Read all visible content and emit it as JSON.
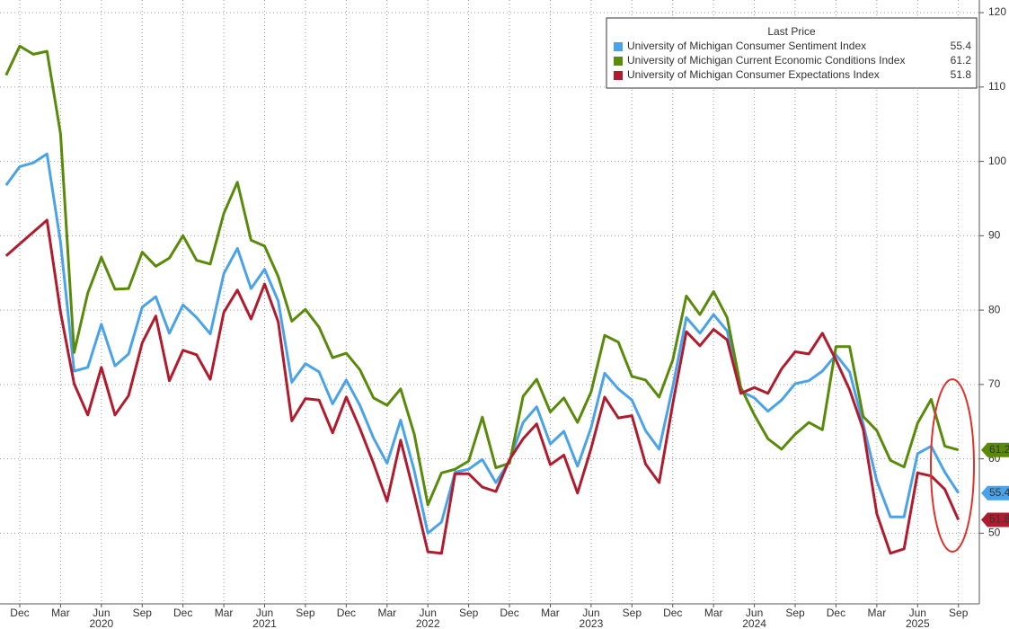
{
  "chart_data": {
    "type": "line",
    "legend_title": "Last Price",
    "x": [
      "2019-11",
      "2019-12",
      "2020-01",
      "2020-02",
      "2020-03",
      "2020-04",
      "2020-05",
      "2020-06",
      "2020-07",
      "2020-08",
      "2020-09",
      "2020-10",
      "2020-11",
      "2020-12",
      "2021-01",
      "2021-02",
      "2021-03",
      "2021-04",
      "2021-05",
      "2021-06",
      "2021-07",
      "2021-08",
      "2021-09",
      "2021-10",
      "2021-11",
      "2021-12",
      "2022-01",
      "2022-02",
      "2022-03",
      "2022-04",
      "2022-05",
      "2022-06",
      "2022-07",
      "2022-08",
      "2022-09",
      "2022-10",
      "2022-11",
      "2022-12",
      "2023-01",
      "2023-02",
      "2023-03",
      "2023-04",
      "2023-05",
      "2023-06",
      "2023-07",
      "2023-08",
      "2023-09",
      "2023-10",
      "2023-11",
      "2023-12",
      "2024-01",
      "2024-02",
      "2024-03",
      "2024-04",
      "2024-05",
      "2024-06",
      "2024-07",
      "2024-08",
      "2024-09",
      "2024-10",
      "2024-11",
      "2024-12",
      "2025-01",
      "2025-02",
      "2025-03",
      "2025-04",
      "2025-05",
      "2025-06",
      "2025-07",
      "2025-08",
      "2025-09"
    ],
    "series": [
      {
        "name": "University of Michigan Consumer Sentiment Index",
        "color": "#4aa3e8",
        "values": [
          96.8,
          99.3,
          99.8,
          101.0,
          89.1,
          71.8,
          72.3,
          78.1,
          72.5,
          74.1,
          80.4,
          81.8,
          76.9,
          80.7,
          79.0,
          76.8,
          84.9,
          88.3,
          82.9,
          85.5,
          81.2,
          70.3,
          72.8,
          71.7,
          67.4,
          70.6,
          67.2,
          62.8,
          59.4,
          65.2,
          58.4,
          50.0,
          51.5,
          58.2,
          58.6,
          59.9,
          56.8,
          59.7,
          64.9,
          67.0,
          62.0,
          63.7,
          59.0,
          64.2,
          71.5,
          69.4,
          67.9,
          63.8,
          61.3,
          69.7,
          79.0,
          76.9,
          79.4,
          77.2,
          69.1,
          68.2,
          66.4,
          67.9,
          70.1,
          70.5,
          71.8,
          74.0,
          71.7,
          64.7,
          57.0,
          52.2,
          52.2,
          60.7,
          61.7,
          58.2,
          55.4
        ]
      },
      {
        "name": "University of Michigan Current Economic Conditions Index",
        "color": "#5a8a0a",
        "values": [
          111.6,
          115.5,
          114.4,
          114.8,
          103.7,
          74.3,
          82.3,
          87.1,
          82.8,
          82.9,
          87.8,
          85.9,
          87.0,
          90.0,
          86.7,
          86.2,
          93.0,
          97.2,
          89.4,
          88.6,
          84.5,
          78.5,
          80.1,
          77.7,
          73.6,
          74.2,
          72.0,
          68.2,
          67.2,
          69.4,
          63.3,
          53.8,
          58.1,
          58.6,
          59.7,
          65.6,
          58.8,
          59.4,
          68.4,
          70.7,
          66.3,
          68.2,
          64.9,
          69.0,
          76.6,
          75.7,
          71.1,
          70.6,
          68.3,
          73.3,
          81.9,
          79.4,
          82.5,
          79.0,
          69.6,
          65.9,
          62.7,
          61.3,
          63.3,
          64.9,
          63.9,
          75.1,
          75.1,
          65.7,
          63.8,
          59.8,
          58.9,
          64.8,
          68.0,
          61.7,
          61.2
        ]
      },
      {
        "name": "University of Michigan Consumer Expectations Index",
        "color": "#b01c2e",
        "values": [
          87.3,
          88.9,
          90.5,
          92.1,
          79.7,
          70.1,
          65.9,
          72.3,
          65.9,
          68.5,
          75.6,
          79.2,
          70.5,
          74.6,
          74.0,
          70.7,
          79.7,
          82.7,
          78.8,
          83.5,
          78.4,
          65.1,
          68.1,
          67.9,
          63.5,
          68.3,
          64.1,
          59.4,
          54.3,
          62.5,
          55.2,
          47.5,
          47.3,
          58.0,
          58.0,
          56.2,
          55.6,
          59.9,
          62.7,
          64.7,
          59.2,
          60.5,
          55.4,
          61.4,
          68.3,
          65.5,
          65.8,
          59.3,
          56.8,
          67.4,
          77.1,
          75.2,
          77.4,
          76.0,
          68.8,
          69.6,
          68.8,
          72.1,
          74.4,
          74.1,
          76.9,
          73.3,
          69.3,
          64.0,
          52.6,
          47.3,
          47.9,
          58.1,
          57.7,
          55.9,
          51.8
        ]
      }
    ],
    "xlim": [
      "2019-10",
      "2025-11"
    ],
    "xticks": [
      {
        "value": "2019-12",
        "label": "Dec"
      },
      {
        "value": "2020-03",
        "label": "Mar"
      },
      {
        "value": "2020-06",
        "label": "Jun"
      },
      {
        "value": "2020-09",
        "label": "Sep"
      },
      {
        "value": "2020-12",
        "label": "Dec"
      },
      {
        "value": "2021-03",
        "label": "Mar"
      },
      {
        "value": "2021-06",
        "label": "Jun"
      },
      {
        "value": "2021-09",
        "label": "Sep"
      },
      {
        "value": "2021-12",
        "label": "Dec"
      },
      {
        "value": "2022-03",
        "label": "Mar"
      },
      {
        "value": "2022-06",
        "label": "Jun"
      },
      {
        "value": "2022-09",
        "label": "Sep"
      },
      {
        "value": "2022-12",
        "label": "Dec"
      },
      {
        "value": "2023-03",
        "label": "Mar"
      },
      {
        "value": "2023-06",
        "label": "Jun"
      },
      {
        "value": "2023-09",
        "label": "Sep"
      },
      {
        "value": "2023-12",
        "label": "Dec"
      },
      {
        "value": "2024-03",
        "label": "Mar"
      },
      {
        "value": "2024-06",
        "label": "Jun"
      },
      {
        "value": "2024-09",
        "label": "Sep"
      },
      {
        "value": "2024-12",
        "label": "Dec"
      },
      {
        "value": "2025-03",
        "label": "Mar"
      },
      {
        "value": "2025-06",
        "label": "Jun"
      },
      {
        "value": "2025-09",
        "label": "Sep"
      }
    ],
    "year_labels": [
      {
        "value": "2020-06",
        "label": "2020"
      },
      {
        "value": "2021-06",
        "label": "2021"
      },
      {
        "value": "2022-06",
        "label": "2022"
      },
      {
        "value": "2023-06",
        "label": "2023"
      },
      {
        "value": "2024-06",
        "label": "2024"
      },
      {
        "value": "2025-06",
        "label": "2025"
      }
    ],
    "ylim": [
      40.5,
      121.7
    ],
    "yticks": [
      50,
      60,
      70,
      80,
      90,
      100,
      110,
      120
    ],
    "grid": true
  }
}
